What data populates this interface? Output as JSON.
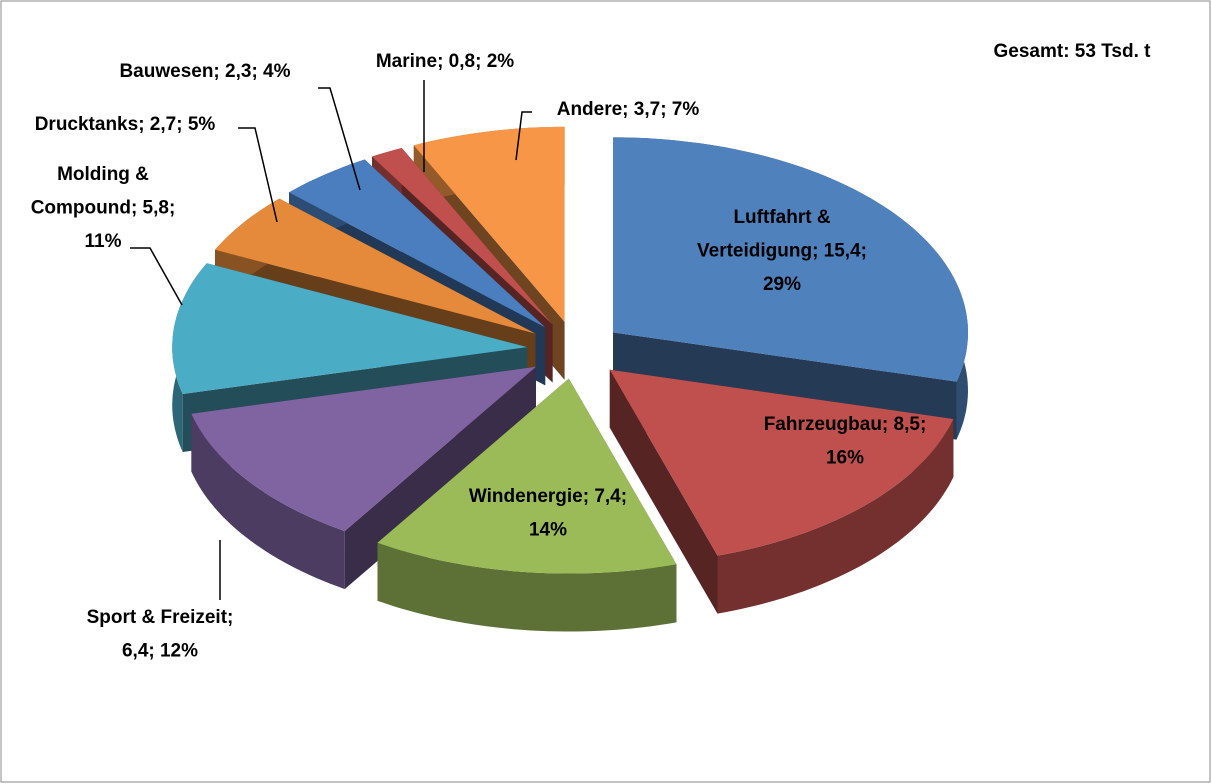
{
  "chart_data": {
    "type": "pie3d",
    "annotation": "Gesamt: 53 Tsd. t",
    "categories": [
      "Luftfahrt & Verteidigung",
      "Fahrzeugbau",
      "Windenergie",
      "Sport & Freizeit",
      "Molding & Compound",
      "Drucktanks",
      "Bauwesen",
      "Marine",
      "Andere"
    ],
    "values": [
      15.4,
      8.5,
      7.4,
      6.4,
      5.8,
      2.7,
      2.3,
      0.8,
      3.7
    ],
    "percentages": [
      29,
      16,
      14,
      12,
      11,
      5,
      4,
      2,
      7
    ],
    "value_labels": [
      [
        "Luftfahrt &",
        "Verteidigung; 15,4;",
        "29%"
      ],
      [
        "Fahrzeugbau; 8,5;",
        "16%"
      ],
      [
        "Windenergie; 7,4;",
        "14%"
      ],
      [
        "Sport & Freizeit;",
        "6,4; 12%"
      ],
      [
        "Molding &",
        "Compound; 5,8;",
        "11%"
      ],
      [
        "Drucktanks; 2,7; 5%"
      ],
      [
        "Bauwesen; 2,3; 4%"
      ],
      [
        "Marine; 0,8; 2%"
      ],
      [
        "Andere; 3,7; 7%"
      ]
    ],
    "colors": [
      "#4f81bd",
      "#c0504d",
      "#9bbb59",
      "#8064a2",
      "#4bacc6",
      "#e5893a",
      "#4a7ebf",
      "#c0504d",
      "#f79646"
    ]
  }
}
